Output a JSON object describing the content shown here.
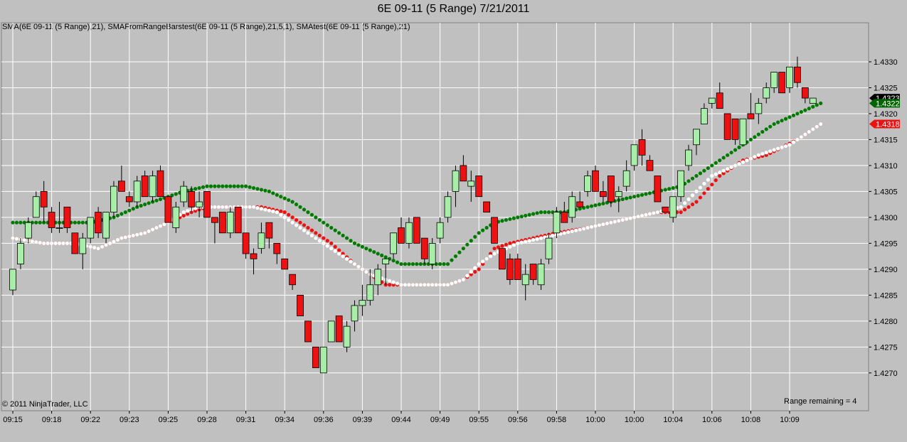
{
  "title": "6E 09-11 (5 Range)  7/21/2011",
  "indicator_label": "SMA(6E 09-11 (5 Range),21), SMAFromRangeBarstest(6E 09-11 (5 Range),21,5,1), SMAtest(6E 09-11 (5 Range),21)",
  "copyright": "© 2011 NinjaTrader, LLC",
  "range_remaining": "Range remaining = 4",
  "colors": {
    "background": "#c0c0c0",
    "grid": "#ffffff",
    "up_candle": "#a8eea8",
    "down_candle": "#ee1111",
    "sma_green": "#007a00",
    "sma_red": "#ee1111",
    "sma_white": "#ffffff",
    "last_price_box": "#000000",
    "green_marker_box": "#006400",
    "red_marker_box": "#ee1111"
  },
  "chart_data": {
    "type": "candlestick",
    "title": "6E 09-11 (5 Range)  7/21/2011",
    "ylim": [
      1.4266,
      1.4336
    ],
    "y_ticks": [
      "1.4270",
      "1.4275",
      "1.4280",
      "1.4285",
      "1.4290",
      "1.4295",
      "1.4300",
      "1.4305",
      "1.4310",
      "1.4315",
      "1.4320",
      "1.4325",
      "1.4330"
    ],
    "x_tick_labels": [
      "09:15",
      "09:18",
      "09:22",
      "09:23",
      "09:25",
      "09:28",
      "09:31",
      "09:34",
      "09:36",
      "09:39",
      "09:44",
      "09:49",
      "09:55",
      "09:56",
      "09:58",
      "10:00",
      "10:00",
      "10:04",
      "10:06",
      "10:08",
      "10:09"
    ],
    "x_tick_bars": [
      0,
      5,
      10,
      15,
      20,
      25,
      30,
      35,
      40,
      45,
      50,
      55,
      60,
      65,
      70,
      75,
      80,
      85,
      90,
      95,
      100
    ],
    "grid": true,
    "candles": [
      {
        "o": 1.4286,
        "h": 1.429,
        "l": 1.4285,
        "c": 1.429
      },
      {
        "o": 1.4291,
        "h": 1.4296,
        "l": 1.429,
        "c": 1.4295
      },
      {
        "o": 1.4296,
        "h": 1.43,
        "l": 1.4295,
        "c": 1.4299
      },
      {
        "o": 1.43,
        "h": 1.4305,
        "l": 1.43,
        "c": 1.4304
      },
      {
        "o": 1.4305,
        "h": 1.4307,
        "l": 1.4299,
        "c": 1.4302
      },
      {
        "o": 1.4301,
        "h": 1.4302,
        "l": 1.4297,
        "c": 1.4298
      },
      {
        "o": 1.4298,
        "h": 1.4303,
        "l": 1.4297,
        "c": 1.4298
      },
      {
        "o": 1.4302,
        "h": 1.4302,
        "l": 1.4297,
        "c": 1.4298
      },
      {
        "o": 1.4297,
        "h": 1.4297,
        "l": 1.4293,
        "c": 1.4293
      },
      {
        "o": 1.4293,
        "h": 1.4297,
        "l": 1.429,
        "c": 1.4296
      },
      {
        "o": 1.4296,
        "h": 1.43,
        "l": 1.4295,
        "c": 1.43
      },
      {
        "o": 1.4301,
        "h": 1.4302,
        "l": 1.4296,
        "c": 1.4297
      },
      {
        "o": 1.4296,
        "h": 1.4301,
        "l": 1.4295,
        "c": 1.4301
      },
      {
        "o": 1.4301,
        "h": 1.4307,
        "l": 1.43,
        "c": 1.4306
      },
      {
        "o": 1.4307,
        "h": 1.431,
        "l": 1.4305,
        "c": 1.4305
      },
      {
        "o": 1.4304,
        "h": 1.4305,
        "l": 1.4302,
        "c": 1.4303
      },
      {
        "o": 1.4303,
        "h": 1.4308,
        "l": 1.4302,
        "c": 1.4307
      },
      {
        "o": 1.4308,
        "h": 1.4309,
        "l": 1.4304,
        "c": 1.4304
      },
      {
        "o": 1.4304,
        "h": 1.4309,
        "l": 1.4303,
        "c": 1.4308
      },
      {
        "o": 1.4309,
        "h": 1.431,
        "l": 1.4304,
        "c": 1.4304
      },
      {
        "o": 1.4304,
        "h": 1.4304,
        "l": 1.4299,
        "c": 1.4299
      },
      {
        "o": 1.4298,
        "h": 1.4303,
        "l": 1.4297,
        "c": 1.4302
      },
      {
        "o": 1.4303,
        "h": 1.4307,
        "l": 1.4302,
        "c": 1.4306
      },
      {
        "o": 1.4305,
        "h": 1.4306,
        "l": 1.4301,
        "c": 1.4302
      },
      {
        "o": 1.4302,
        "h": 1.4305,
        "l": 1.43,
        "c": 1.4303
      },
      {
        "o": 1.4305,
        "h": 1.4305,
        "l": 1.43,
        "c": 1.43
      },
      {
        "o": 1.43,
        "h": 1.43,
        "l": 1.4295,
        "c": 1.4299
      },
      {
        "o": 1.4301,
        "h": 1.4301,
        "l": 1.4297,
        "c": 1.4297
      },
      {
        "o": 1.4297,
        "h": 1.4302,
        "l": 1.4296,
        "c": 1.4301
      },
      {
        "o": 1.4302,
        "h": 1.4302,
        "l": 1.4297,
        "c": 1.4297
      },
      {
        "o": 1.4297,
        "h": 1.4297,
        "l": 1.4292,
        "c": 1.4293
      },
      {
        "o": 1.4293,
        "h": 1.4294,
        "l": 1.4289,
        "c": 1.4292
      },
      {
        "o": 1.4294,
        "h": 1.4299,
        "l": 1.4293,
        "c": 1.4297
      },
      {
        "o": 1.4299,
        "h": 1.4299,
        "l": 1.4294,
        "c": 1.4296
      },
      {
        "o": 1.4295,
        "h": 1.4295,
        "l": 1.4291,
        "c": 1.4293
      },
      {
        "o": 1.4292,
        "h": 1.4292,
        "l": 1.429,
        "c": 1.429
      },
      {
        "o": 1.4289,
        "h": 1.4289,
        "l": 1.4286,
        "c": 1.4287
      },
      {
        "o": 1.4285,
        "h": 1.4285,
        "l": 1.4281,
        "c": 1.4281
      },
      {
        "o": 1.428,
        "h": 1.428,
        "l": 1.4276,
        "c": 1.4276
      },
      {
        "o": 1.4275,
        "h": 1.4275,
        "l": 1.4271,
        "c": 1.4271
      },
      {
        "o": 1.427,
        "h": 1.4275,
        "l": 1.427,
        "c": 1.4275
      },
      {
        "o": 1.4276,
        "h": 1.428,
        "l": 1.4276,
        "c": 1.428
      },
      {
        "o": 1.4281,
        "h": 1.4281,
        "l": 1.4276,
        "c": 1.4276
      },
      {
        "o": 1.4275,
        "h": 1.428,
        "l": 1.4274,
        "c": 1.4279
      },
      {
        "o": 1.428,
        "h": 1.4284,
        "l": 1.4278,
        "c": 1.4283
      },
      {
        "o": 1.4283,
        "h": 1.4287,
        "l": 1.4281,
        "c": 1.4284
      },
      {
        "o": 1.4284,
        "h": 1.429,
        "l": 1.4283,
        "c": 1.4287
      },
      {
        "o": 1.4287,
        "h": 1.4291,
        "l": 1.4285,
        "c": 1.429
      },
      {
        "o": 1.4291,
        "h": 1.4292,
        "l": 1.4287,
        "c": 1.4292
      },
      {
        "o": 1.4293,
        "h": 1.4297,
        "l": 1.4292,
        "c": 1.4297
      },
      {
        "o": 1.4298,
        "h": 1.43,
        "l": 1.4295,
        "c": 1.4295
      },
      {
        "o": 1.4295,
        "h": 1.43,
        "l": 1.4294,
        "c": 1.4299
      },
      {
        "o": 1.43,
        "h": 1.43,
        "l": 1.4295,
        "c": 1.4295
      },
      {
        "o": 1.4296,
        "h": 1.4296,
        "l": 1.4291,
        "c": 1.4292
      },
      {
        "o": 1.4291,
        "h": 1.4296,
        "l": 1.429,
        "c": 1.4295
      },
      {
        "o": 1.4296,
        "h": 1.43,
        "l": 1.4295,
        "c": 1.4299
      },
      {
        "o": 1.43,
        "h": 1.4305,
        "l": 1.4299,
        "c": 1.4304
      },
      {
        "o": 1.4305,
        "h": 1.431,
        "l": 1.4302,
        "c": 1.4309
      },
      {
        "o": 1.431,
        "h": 1.4312,
        "l": 1.4307,
        "c": 1.4307
      },
      {
        "o": 1.4306,
        "h": 1.4309,
        "l": 1.4303,
        "c": 1.4307
      },
      {
        "o": 1.4308,
        "h": 1.4308,
        "l": 1.4304,
        "c": 1.4304
      },
      {
        "o": 1.4303,
        "h": 1.4303,
        "l": 1.4301,
        "c": 1.4301
      },
      {
        "o": 1.43,
        "h": 1.43,
        "l": 1.4295,
        "c": 1.4295
      },
      {
        "o": 1.4294,
        "h": 1.4294,
        "l": 1.429,
        "c": 1.429
      },
      {
        "o": 1.4292,
        "h": 1.4293,
        "l": 1.4287,
        "c": 1.4288
      },
      {
        "o": 1.4292,
        "h": 1.4293,
        "l": 1.4288,
        "c": 1.4288
      },
      {
        "o": 1.4287,
        "h": 1.4291,
        "l": 1.4284,
        "c": 1.4289
      },
      {
        "o": 1.4291,
        "h": 1.4291,
        "l": 1.4287,
        "c": 1.4288
      },
      {
        "o": 1.4287,
        "h": 1.4292,
        "l": 1.4286,
        "c": 1.4291
      },
      {
        "o": 1.4292,
        "h": 1.4297,
        "l": 1.4291,
        "c": 1.4296
      },
      {
        "o": 1.4297,
        "h": 1.4302,
        "l": 1.4296,
        "c": 1.4301
      },
      {
        "o": 1.4301,
        "h": 1.4303,
        "l": 1.4299,
        "c": 1.4299
      },
      {
        "o": 1.43,
        "h": 1.4305,
        "l": 1.4299,
        "c": 1.4304
      },
      {
        "o": 1.4303,
        "h": 1.4305,
        "l": 1.4302,
        "c": 1.4302
      },
      {
        "o": 1.4305,
        "h": 1.4309,
        "l": 1.4304,
        "c": 1.4308
      },
      {
        "o": 1.4309,
        "h": 1.431,
        "l": 1.4305,
        "c": 1.4305
      },
      {
        "o": 1.4305,
        "h": 1.4307,
        "l": 1.4303,
        "c": 1.4304
      },
      {
        "o": 1.4308,
        "h": 1.4308,
        "l": 1.4302,
        "c": 1.4303
      },
      {
        "o": 1.4304,
        "h": 1.4306,
        "l": 1.4301,
        "c": 1.4305
      },
      {
        "o": 1.4306,
        "h": 1.4311,
        "l": 1.4305,
        "c": 1.4309
      },
      {
        "o": 1.431,
        "h": 1.4314,
        "l": 1.4309,
        "c": 1.4314
      },
      {
        "o": 1.4315,
        "h": 1.4317,
        "l": 1.431,
        "c": 1.4312
      },
      {
        "o": 1.4311,
        "h": 1.4312,
        "l": 1.4309,
        "c": 1.4309
      },
      {
        "o": 1.4308,
        "h": 1.4308,
        "l": 1.4303,
        "c": 1.4303
      },
      {
        "o": 1.4302,
        "h": 1.4302,
        "l": 1.4301,
        "c": 1.4301
      },
      {
        "o": 1.43,
        "h": 1.4304,
        "l": 1.4299,
        "c": 1.4304
      },
      {
        "o": 1.4304,
        "h": 1.4309,
        "l": 1.4303,
        "c": 1.4309
      },
      {
        "o": 1.431,
        "h": 1.4314,
        "l": 1.4309,
        "c": 1.4313
      },
      {
        "o": 1.4314,
        "h": 1.4317,
        "l": 1.4312,
        "c": 1.4317
      },
      {
        "o": 1.4318,
        "h": 1.4322,
        "l": 1.4318,
        "c": 1.4321
      },
      {
        "o": 1.4322,
        "h": 1.4323,
        "l": 1.4321,
        "c": 1.4323
      },
      {
        "o": 1.4324,
        "h": 1.4326,
        "l": 1.4321,
        "c": 1.4321
      },
      {
        "o": 1.432,
        "h": 1.432,
        "l": 1.4315,
        "c": 1.4315
      },
      {
        "o": 1.4319,
        "h": 1.4319,
        "l": 1.4314,
        "c": 1.4315
      },
      {
        "o": 1.4314,
        "h": 1.4319,
        "l": 1.4314,
        "c": 1.4319
      },
      {
        "o": 1.432,
        "h": 1.4324,
        "l": 1.4319,
        "c": 1.4319
      },
      {
        "o": 1.432,
        "h": 1.4323,
        "l": 1.4318,
        "c": 1.4322
      },
      {
        "o": 1.4323,
        "h": 1.4326,
        "l": 1.4322,
        "c": 1.4325
      },
      {
        "o": 1.4325,
        "h": 1.4328,
        "l": 1.4324,
        "c": 1.4328
      },
      {
        "o": 1.4328,
        "h": 1.4328,
        "l": 1.4324,
        "c": 1.4324
      },
      {
        "o": 1.4325,
        "h": 1.4329,
        "l": 1.4324,
        "c": 1.4329
      },
      {
        "o": 1.4329,
        "h": 1.4331,
        "l": 1.4325,
        "c": 1.4326
      },
      {
        "o": 1.4325,
        "h": 1.4325,
        "l": 1.4322,
        "c": 1.4323
      },
      {
        "o": 1.4322,
        "h": 1.4323,
        "l": 1.4322,
        "c": 1.4323
      }
    ],
    "series": [
      {
        "color": "green",
        "points": [
          [
            0,
            1.4299
          ],
          [
            6,
            1.4299
          ],
          [
            10,
            1.4299
          ],
          [
            13,
            1.43
          ],
          [
            16,
            1.4302
          ],
          [
            20,
            1.4304
          ],
          [
            22,
            1.4305
          ],
          [
            25,
            1.4306
          ],
          [
            30,
            1.4306
          ],
          [
            33,
            1.4305
          ],
          [
            36,
            1.4303
          ],
          [
            38,
            1.4301
          ],
          [
            41,
            1.4298
          ],
          [
            44,
            1.4295
          ],
          [
            47,
            1.4293
          ],
          [
            50,
            1.4291
          ],
          [
            54,
            1.4291
          ],
          [
            56,
            1.4291
          ],
          [
            58,
            1.4294
          ],
          [
            60,
            1.4297
          ],
          [
            62,
            1.4299
          ],
          [
            65,
            1.43
          ],
          [
            68,
            1.4301
          ],
          [
            71,
            1.4301
          ],
          [
            74,
            1.4302
          ],
          [
            77,
            1.4303
          ],
          [
            80,
            1.4304
          ],
          [
            83,
            1.4305
          ],
          [
            86,
            1.4306
          ],
          [
            89,
            1.4309
          ],
          [
            92,
            1.4312
          ],
          [
            95,
            1.4315
          ],
          [
            98,
            1.4318
          ],
          [
            101,
            1.432
          ],
          [
            104,
            1.4322
          ]
        ]
      },
      {
        "color": "red",
        "points": [
          [
            0,
            1.4296
          ],
          [
            4,
            1.4295
          ],
          [
            8,
            1.4295
          ],
          [
            11,
            1.4294
          ],
          [
            14,
            1.4296
          ],
          [
            17,
            1.4297
          ],
          [
            20,
            1.4299
          ],
          [
            23,
            1.4301
          ],
          [
            25,
            1.4302
          ],
          [
            28,
            1.4302
          ],
          [
            32,
            1.4302
          ],
          [
            35,
            1.4301
          ],
          [
            37,
            1.4299
          ],
          [
            39,
            1.4297
          ],
          [
            41,
            1.4295
          ],
          [
            44,
            1.4291
          ],
          [
            46,
            1.4289
          ],
          [
            48,
            1.4287
          ],
          [
            50,
            1.4287
          ],
          [
            53,
            1.4287
          ],
          [
            56,
            1.4287
          ],
          [
            58,
            1.4288
          ],
          [
            60,
            1.429
          ],
          [
            62,
            1.4294
          ],
          [
            64,
            1.4295
          ],
          [
            67,
            1.4296
          ],
          [
            70,
            1.4297
          ],
          [
            74,
            1.4298
          ],
          [
            77,
            1.4299
          ],
          [
            80,
            1.43
          ],
          [
            83,
            1.4301
          ],
          [
            86,
            1.4301
          ],
          [
            88,
            1.4303
          ],
          [
            91,
            1.4308
          ],
          [
            94,
            1.4311
          ],
          [
            97,
            1.4312
          ],
          [
            101,
            1.4315
          ],
          [
            104,
            1.4318
          ]
        ]
      },
      {
        "color": "white",
        "points": [
          [
            0,
            1.4296
          ],
          [
            4,
            1.4295
          ],
          [
            8,
            1.4295
          ],
          [
            11,
            1.4294
          ],
          [
            14,
            1.4296
          ],
          [
            17,
            1.4297
          ],
          [
            20,
            1.4299
          ],
          [
            22,
            1.4301
          ],
          [
            24,
            1.4302
          ],
          [
            28,
            1.4302
          ],
          [
            31,
            1.4302
          ],
          [
            34,
            1.4301
          ],
          [
            36,
            1.4299
          ],
          [
            38,
            1.4297
          ],
          [
            40,
            1.4295
          ],
          [
            43,
            1.4292
          ],
          [
            46,
            1.4289
          ],
          [
            48,
            1.4288
          ],
          [
            50,
            1.4287
          ],
          [
            53,
            1.4287
          ],
          [
            56,
            1.4287
          ],
          [
            58,
            1.4288
          ],
          [
            60,
            1.4291
          ],
          [
            62,
            1.4293
          ],
          [
            65,
            1.4295
          ],
          [
            68,
            1.4296
          ],
          [
            71,
            1.4297
          ],
          [
            74,
            1.4298
          ],
          [
            77,
            1.4299
          ],
          [
            80,
            1.43
          ],
          [
            83,
            1.4301
          ],
          [
            86,
            1.4302
          ],
          [
            88,
            1.4305
          ],
          [
            90,
            1.4308
          ],
          [
            93,
            1.431
          ],
          [
            96,
            1.4312
          ],
          [
            100,
            1.4314
          ],
          [
            104,
            1.4318
          ]
        ]
      }
    ],
    "price_markers": [
      {
        "label": "1.4323",
        "value": 1.4323,
        "kind": "last"
      },
      {
        "label": "1.4322",
        "value": 1.4322,
        "kind": "green"
      },
      {
        "label": "1.4318",
        "value": 1.4318,
        "kind": "red"
      }
    ]
  }
}
